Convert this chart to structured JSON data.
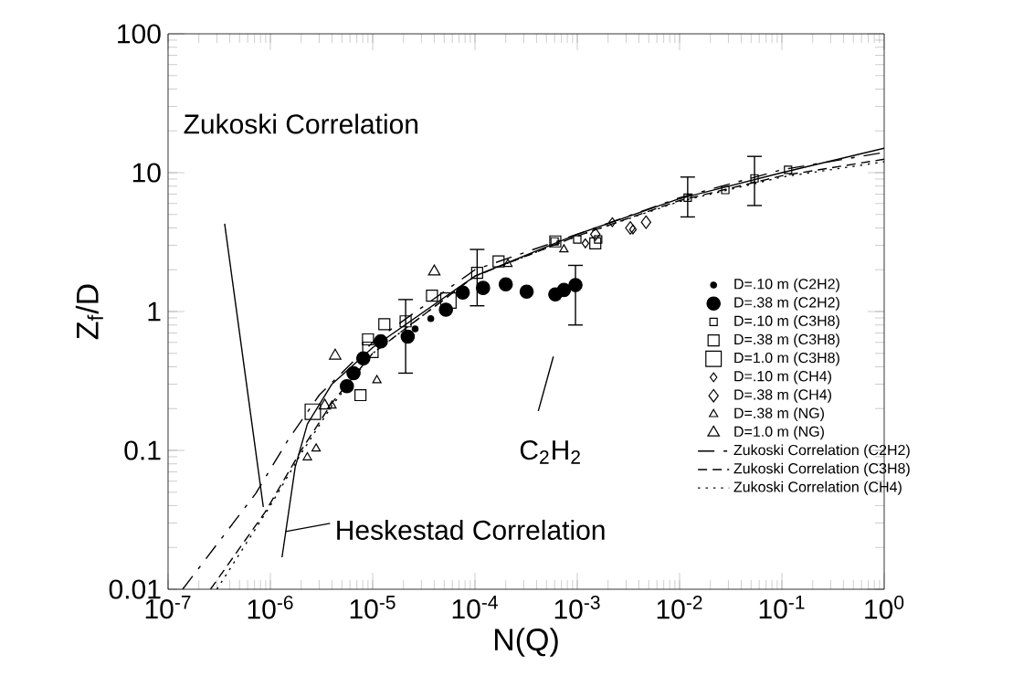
{
  "chart_data": {
    "type": "scatter",
    "xlabel": "N(Q)",
    "ylabel": "Z$_{f}$/D",
    "log": "xy",
    "legend": "right",
    "xlim": [
      1e-07,
      1
    ],
    "ylim": [
      0.01,
      100
    ],
    "xticks": [
      {
        "value": 1e-07,
        "label": "10$^{-7}$"
      },
      {
        "value": 1e-06,
        "label": "10$^{-6}$"
      },
      {
        "value": 1e-05,
        "label": "10$^{-5}$"
      },
      {
        "value": 0.0001,
        "label": "10$^{-4}$"
      },
      {
        "value": 0.001,
        "label": "10$^{-3}$"
      },
      {
        "value": 0.01,
        "label": "10$^{-2}$"
      },
      {
        "value": 0.1,
        "label": "10$^{-1}$"
      },
      {
        "value": 1,
        "label": "10$^{0}$"
      }
    ],
    "yticks": [
      0.01,
      0.1,
      1,
      10,
      100
    ],
    "annotations": [
      "Zukoski Correlation",
      {
        "text": "Heskestad Correlation",
        "x": 1.4e-06,
        "y": 0.026
      },
      "C$_{2}$H$_{2}$"
    ],
    "series": [
      {
        "name": "D=.10 m (C2H2)",
        "marker": "circle",
        "color": "#000000",
        "x": [
          2.6e-05,
          3.7e-05
        ],
        "values": [
          0.75,
          0.89
        ]
      },
      {
        "name": "D=.38 m (C2H2)",
        "marker": "circle",
        "color": "#000000",
        "x": [
          5.6e-06,
          6.5e-06,
          8.1e-06,
          1.2e-05,
          2.2e-05,
          5.2e-05,
          7.6e-05,
          0.00012,
          0.0002,
          0.00032,
          0.00061,
          0.00074,
          0.00096
        ],
        "values": [
          0.29,
          0.36,
          0.46,
          0.61,
          0.66,
          1.03,
          1.37,
          1.48,
          1.57,
          1.39,
          1.33,
          1.43,
          1.55
        ],
        "errors": [
          null,
          null,
          null,
          null,
          null,
          null,
          null,
          null,
          null,
          null,
          null,
          null,
          [
            0.8,
            2.15
          ]
        ]
      },
      {
        "name": "D=.10 m (C3H8)",
        "marker": "square",
        "color": "#000000",
        "x": [
          0.0006,
          0.001,
          0.0016,
          0.012,
          0.028,
          0.054,
          0.115
        ],
        "values": [
          3.2,
          3.3,
          3.3,
          6.6,
          7.5,
          9.1,
          10.5
        ],
        "errors": [
          null,
          null,
          null,
          [
            4.8,
            9.3
          ],
          null,
          [
            5.8,
            13.1
          ],
          null
        ]
      },
      {
        "name": "D=.38 m (C3H8)",
        "marker": "square",
        "color": "#000000",
        "x": [
          7.6e-06,
          9e-06,
          1.3e-05,
          2.1e-05,
          3.8e-05,
          0.000105,
          0.00017,
          0.00061,
          0.0015
        ],
        "values": [
          0.25,
          0.63,
          0.81,
          0.85,
          1.3,
          1.9,
          2.3,
          3.2,
          3.1
        ],
        "errors": [
          null,
          null,
          null,
          [
            0.36,
            1.22
          ],
          null,
          [
            1.1,
            2.8
          ],
          null,
          null,
          null
        ]
      },
      {
        "name": "D=1.0 m (C3H8)",
        "marker": "square",
        "color": "#000000",
        "x": [
          2.6e-06,
          9.5e-06,
          5.5e-05
        ],
        "values": [
          0.19,
          0.53,
          1.2
        ]
      },
      {
        "name": "D=.10 m (CH4)",
        "marker": "diamond",
        "color": "#000000",
        "x": [
          0.0012,
          0.0022,
          0.0035
        ],
        "values": [
          3.1,
          4.4,
          3.9
        ]
      },
      {
        "name": "D=.38 m (CH4)",
        "marker": "diamond",
        "color": "#000000",
        "x": [
          0.0015,
          0.0033,
          0.0047
        ],
        "values": [
          3.6,
          4.0,
          4.4
        ]
      },
      {
        "name": "D=.38 m (NG)",
        "marker": "triangle",
        "color": "#000000",
        "x": [
          2.3e-06,
          2.8e-06,
          4e-06,
          1.1e-05,
          0.00021,
          0.00074
        ],
        "values": [
          0.089,
          0.103,
          0.21,
          0.32,
          2.2,
          2.8
        ]
      },
      {
        "name": "D=1.0 m (NG)",
        "marker": "triangle",
        "color": "#000000",
        "x": [
          3.4e-06,
          4.3e-06,
          4e-05
        ],
        "values": [
          0.21,
          0.48,
          1.94
        ]
      },
      {
        "name": "Zukoski Correlation (C2H2)",
        "type": "line",
        "marker": "none",
        "line_style": "dashed",
        "color": "#000000",
        "x": [
          1.39e-07,
          7.2e-07,
          1.5e-06,
          3e-06,
          1e-05,
          0.0001,
          0.001,
          0.01,
          0.1,
          1
        ],
        "values": [
          0.01,
          0.049,
          0.12,
          0.25,
          0.6,
          2.0,
          3.6,
          6.6,
          10.5,
          14
        ]
      },
      {
        "name": "Zukoski Correlation (C3H8)",
        "type": "line",
        "marker": "none",
        "line_style": "dashed",
        "color": "#000000",
        "x": [
          2.6e-07,
          8.9e-07,
          2e-06,
          4e-06,
          1e-05,
          0.0001,
          0.001,
          0.01,
          0.1,
          1
        ],
        "values": [
          0.01,
          0.036,
          0.1,
          0.22,
          0.5,
          1.8,
          3.5,
          6.3,
          9.5,
          12.5
        ]
      },
      {
        "name": "Zukoski Correlation (CH4)",
        "type": "line",
        "marker": "none",
        "line_style": "dotted",
        "color": "#000000",
        "x": [
          3e-07,
          1e-06,
          2e-06,
          4e-06,
          1e-05,
          0.0001,
          0.001,
          0.01,
          0.1,
          1
        ],
        "values": [
          0.01,
          0.04,
          0.095,
          0.21,
          0.5,
          1.8,
          3.5,
          6.2,
          9.3,
          12
        ]
      },
      {
        "type": "line",
        "marker": "none",
        "line_style": "solid",
        "color": "#000000",
        "x": [
          1.3e-06,
          1.75e-06,
          2.3e-06,
          4e-06,
          1e-05,
          0.0001,
          0.001,
          0.01,
          0.1,
          1
        ],
        "values": [
          0.017,
          0.076,
          0.155,
          0.3,
          0.55,
          1.8,
          3.6,
          6.5,
          10,
          15
        ]
      }
    ]
  }
}
